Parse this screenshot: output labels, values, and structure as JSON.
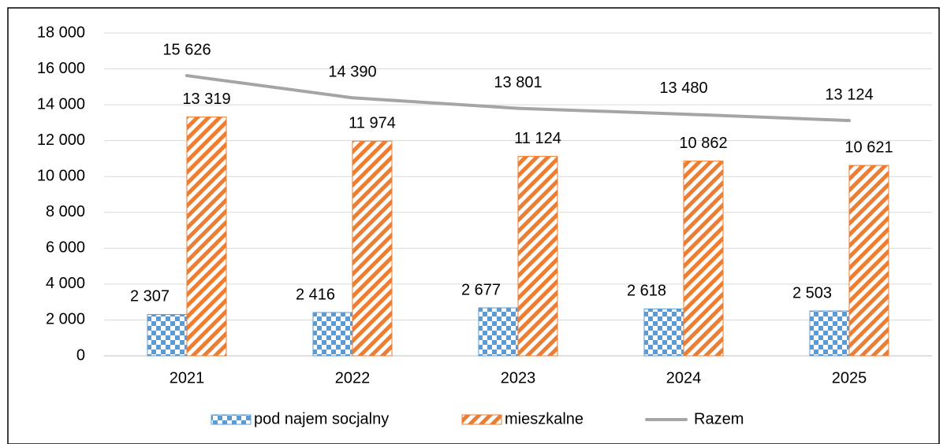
{
  "chart_data": {
    "type": "bar",
    "categories": [
      "2021",
      "2022",
      "2023",
      "2024",
      "2025"
    ],
    "series": [
      {
        "name": "pod najem socjalny",
        "color": "#5b9bd5",
        "values": [
          2307,
          2416,
          2677,
          2618,
          2503
        ],
        "value_labels": [
          "2 307",
          "2 416",
          "2 677",
          "2 618",
          "2 503"
        ]
      },
      {
        "name": "mieszkalne",
        "color": "#ed7d31",
        "values": [
          13319,
          11974,
          11124,
          10862,
          10621
        ],
        "value_labels": [
          "13 319",
          "11 974",
          "11 124",
          "10 862",
          "10 621"
        ]
      },
      {
        "name": "Razem",
        "type": "line",
        "color": "#a5a5a5",
        "values": [
          15626,
          14390,
          13801,
          13480,
          13124
        ],
        "value_labels": [
          "15 626",
          "14 390",
          "13 801",
          "13 480",
          "13 124"
        ]
      }
    ],
    "ylim": [
      0,
      18000
    ],
    "yticks": [
      0,
      {
        "value": 2000,
        "label": "2 000"
      },
      {
        "value": 4000,
        "label": "4 000"
      },
      {
        "value": 6000,
        "label": "6 000"
      },
      {
        "value": 8000,
        "label": "8 000"
      },
      {
        "value": 10000,
        "label": "10 000"
      },
      {
        "value": 12000,
        "label": "12 000"
      },
      {
        "value": 14000,
        "label": "14 000"
      },
      {
        "value": 16000,
        "label": "16 000"
      },
      {
        "value": 18000,
        "label": "18 000"
      }
    ],
    "grid": true,
    "legend": "bottom"
  }
}
